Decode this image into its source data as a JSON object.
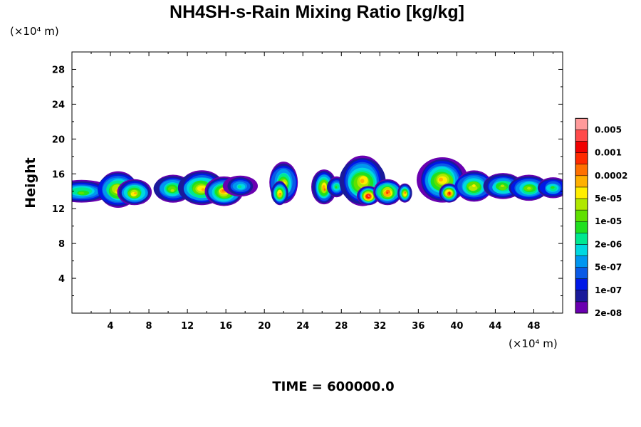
{
  "chart_data": {
    "type": "heatmap",
    "title": "NH4SH-s-Rain Mixing Ratio [kg/kg]",
    "ylabel": "Height",
    "xlabel": "",
    "x_unit": "(×10⁴ m)",
    "y_unit": "(×10⁴ m)",
    "time_label": "TIME = 600000.0",
    "xlim": [
      0,
      51
    ],
    "ylim": [
      0,
      30
    ],
    "x_ticks": [
      4,
      8,
      12,
      16,
      20,
      24,
      28,
      32,
      36,
      40,
      44,
      48
    ],
    "y_ticks": [
      4,
      8,
      12,
      16,
      20,
      24,
      28
    ],
    "colorbar": {
      "labels": [
        "0.005",
        "0.001",
        "0.0002",
        "5e-05",
        "1e-05",
        "2e-06",
        "5e-07",
        "1e-07",
        "2e-08"
      ],
      "colors": [
        "#6a00b0",
        "#1a1a9a",
        "#0018e6",
        "#0a5ae6",
        "#0096f0",
        "#00d8e0",
        "#00e890",
        "#20e020",
        "#60e000",
        "#b0e800",
        "#ffee00",
        "#ffb000",
        "#ff7000",
        "#ff2a00",
        "#f00000",
        "#ff4a4a",
        "#ff9a9a"
      ]
    },
    "clouds": [
      {
        "x": 1,
        "y": 14.0,
        "w": 3.2,
        "h": 1.3,
        "peak": 8
      },
      {
        "x": 4.8,
        "y": 14.2,
        "w": 2.2,
        "h": 2.1,
        "peak": 11
      },
      {
        "x": 6.5,
        "y": 13.9,
        "w": 1.8,
        "h": 1.5,
        "peak": 11
      },
      {
        "x": 10.5,
        "y": 14.3,
        "w": 2.0,
        "h": 1.6,
        "peak": 9
      },
      {
        "x": 13.5,
        "y": 14.4,
        "w": 2.6,
        "h": 2.0,
        "peak": 11
      },
      {
        "x": 15.8,
        "y": 14.0,
        "w": 2.0,
        "h": 1.7,
        "peak": 12
      },
      {
        "x": 17.5,
        "y": 14.6,
        "w": 1.6,
        "h": 1.2,
        "peak": 6
      },
      {
        "x": 22.0,
        "y": 15.0,
        "w": 1.6,
        "h": 2.4,
        "peak": 10
      },
      {
        "x": 21.6,
        "y": 13.8,
        "w": 0.9,
        "h": 1.4,
        "peak": 12
      },
      {
        "x": 26.2,
        "y": 14.5,
        "w": 1.2,
        "h": 2.0,
        "peak": 12
      },
      {
        "x": 27.5,
        "y": 14.5,
        "w": 1.0,
        "h": 1.2,
        "peak": 7
      },
      {
        "x": 30.2,
        "y": 15.2,
        "w": 2.6,
        "h": 2.9,
        "peak": 11
      },
      {
        "x": 30.8,
        "y": 13.5,
        "w": 1.1,
        "h": 1.1,
        "peak": 16
      },
      {
        "x": 32.8,
        "y": 13.9,
        "w": 1.6,
        "h": 1.5,
        "peak": 13
      },
      {
        "x": 34.6,
        "y": 13.8,
        "w": 0.7,
        "h": 1.1,
        "peak": 12
      },
      {
        "x": 38.5,
        "y": 15.3,
        "w": 2.7,
        "h": 2.6,
        "peak": 11
      },
      {
        "x": 39.2,
        "y": 13.8,
        "w": 1.0,
        "h": 1.1,
        "peak": 14
      },
      {
        "x": 41.8,
        "y": 14.6,
        "w": 2.2,
        "h": 1.8,
        "peak": 10
      },
      {
        "x": 44.8,
        "y": 14.6,
        "w": 2.0,
        "h": 1.5,
        "peak": 9
      },
      {
        "x": 47.5,
        "y": 14.4,
        "w": 2.2,
        "h": 1.5,
        "peak": 9
      },
      {
        "x": 50.0,
        "y": 14.4,
        "w": 1.6,
        "h": 1.2,
        "peak": 7
      }
    ]
  }
}
